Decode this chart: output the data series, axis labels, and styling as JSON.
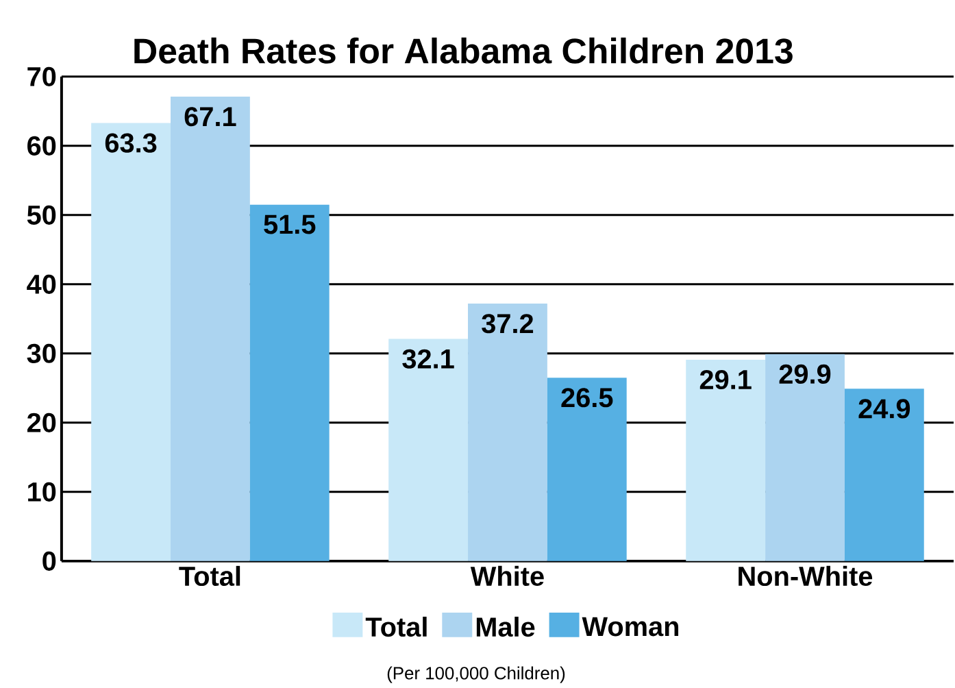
{
  "chart_data": {
    "type": "bar",
    "title": "Death Rates for Alabama Children 2013",
    "categories": [
      "Total",
      "White",
      "Non-White"
    ],
    "series": [
      {
        "name": "Total",
        "color": "#c8e8f8",
        "values": [
          63.3,
          32.1,
          29.1
        ]
      },
      {
        "name": "Male",
        "color": "#acd4f0",
        "values": [
          67.1,
          37.2,
          29.9
        ]
      },
      {
        "name": "Woman",
        "color": "#56b0e3",
        "values": [
          51.5,
          26.5,
          24.9
        ]
      }
    ],
    "ylim": [
      0,
      70
    ],
    "yticks": [
      0,
      10,
      20,
      30,
      40,
      50,
      60,
      70
    ],
    "grid": "y",
    "legend": "bottom",
    "data_labels": true,
    "annotations": [
      "(Per 100,000 Children)"
    ]
  }
}
